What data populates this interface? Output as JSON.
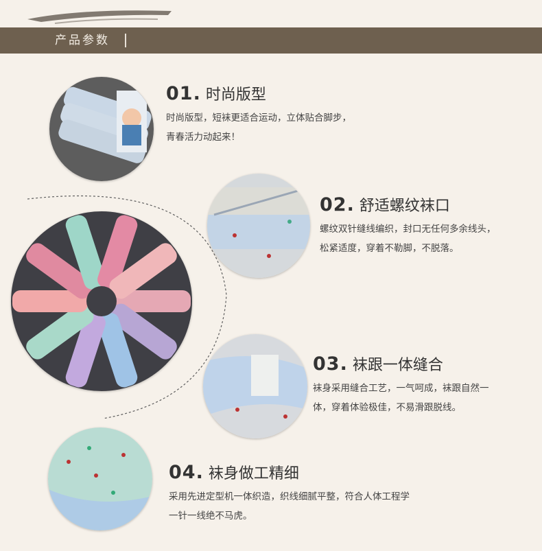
{
  "header": {
    "title": "产品参数"
  },
  "features": [
    {
      "number": "01.",
      "title": "时尚版型",
      "lines": [
        "时尚版型，短袜更适合运动，立体贴合脚步，",
        "青春活力动起来！"
      ]
    },
    {
      "number": "02.",
      "title": "舒适螺纹袜口",
      "lines": [
        "螺纹双针缝线编织，封口无任何多余线头，",
        "松紧适度，穿着不勒脚，不脱落。"
      ]
    },
    {
      "number": "03.",
      "title": "袜跟一体缝合",
      "lines": [
        "袜身采用缝合工艺，一气呵成，袜跟自然一",
        "体，穿着体验极佳，不易滑跟脱线。"
      ]
    },
    {
      "number": "04.",
      "title": "袜身做工精细",
      "lines": [
        "采用先进定型机一体织造，织线细腻平整，符合人体工程学",
        "一针一线绝不马虎。"
      ]
    }
  ],
  "colors": {
    "header_bg": "#6e604f",
    "page_bg": "#f6f1ea"
  }
}
